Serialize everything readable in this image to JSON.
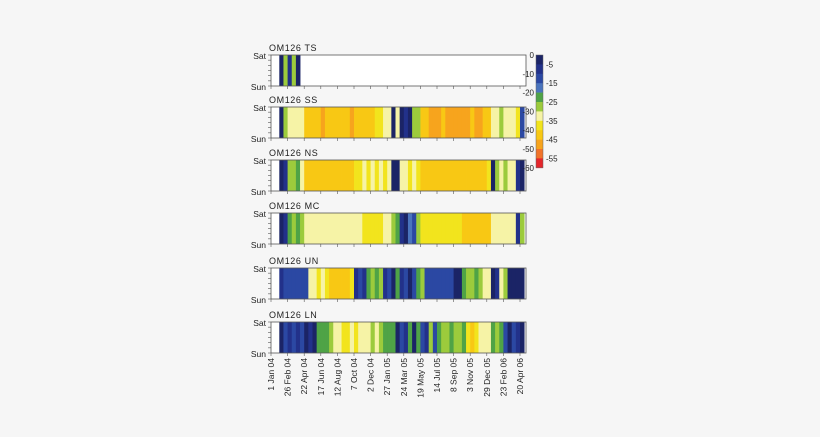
{
  "chart_data": {
    "type": "heatmap",
    "value_scale": {
      "min": -60,
      "max": 0,
      "step": 5,
      "colors": [
        "#1b2466",
        "#22318a",
        "#2b48a3",
        "#4a74bd",
        "#4fa346",
        "#9ccb3c",
        "#f6f3a6",
        "#f2e41d",
        "#f8c814",
        "#f7a41d",
        "#f1732a",
        "#e4262b"
      ],
      "left_ticks": [
        "0",
        "-10",
        "-20",
        "-30",
        "-40",
        "-50",
        "-60"
      ],
      "right_ticks": [
        "-5",
        "-15",
        "-25",
        "-35",
        "-45",
        "-55"
      ]
    },
    "y_labels": {
      "top": "Sat",
      "bottom": "Sun"
    },
    "x_tick_labels": [
      "1 Jan 04",
      "26 Feb 04",
      "22 Apr 04",
      "17 Jun 04",
      "12 Aug 04",
      "7 Oct 04",
      "2 Dec 04",
      "27 Jan 05",
      "24 Mar 05",
      "19 May 05",
      "14 Jul 05",
      "8 Sep 05",
      "3 Nov 05",
      "29 Dec 05",
      "23 Feb 06",
      "20 Apr 06"
    ],
    "column_interval_weeks": 2,
    "panels": [
      {
        "title": "OM126 TS",
        "values": [
          null,
          null,
          -2,
          -25,
          -5,
          -28,
          -3,
          null,
          null,
          null,
          null,
          null,
          null,
          null,
          null,
          null,
          null,
          null,
          null,
          null,
          null,
          null,
          null,
          null,
          null,
          null,
          null,
          null,
          null,
          null,
          null,
          null,
          null,
          null,
          null,
          null,
          null,
          null,
          null,
          null,
          null,
          null,
          null,
          null,
          null,
          null,
          null,
          null,
          null,
          null,
          null,
          null,
          null,
          null,
          null,
          null,
          null,
          null,
          null,
          null,
          null
        ]
      },
      {
        "title": "OM126 SS",
        "values": [
          null,
          null,
          -3,
          -28,
          -33,
          -32,
          -30,
          -34,
          -42,
          -40,
          -43,
          -40,
          -45,
          -42,
          -40,
          -43,
          -44,
          -40,
          -42,
          -45,
          -41,
          -40,
          -43,
          -42,
          -40,
          -38,
          -36,
          -33,
          -30,
          -3,
          -32,
          -3,
          -8,
          -2,
          -28,
          -25,
          -42,
          -44,
          -45,
          -46,
          -45,
          -44,
          -46,
          -47,
          -45,
          -46,
          -47,
          -45,
          -44,
          -46,
          -45,
          -43,
          -40,
          -33,
          -34,
          -26,
          -33,
          -34,
          -32,
          -35,
          -10
        ]
      },
      {
        "title": "OM126 NS",
        "values": [
          null,
          null,
          -3,
          -5,
          -25,
          -27,
          -23,
          -30,
          -40,
          -42,
          -41,
          -40,
          -43,
          -44,
          -42,
          -40,
          -41,
          -43,
          -42,
          -40,
          -38,
          -36,
          -32,
          -36,
          -30,
          -38,
          -34,
          -36,
          -33,
          -3,
          -4,
          -30,
          -34,
          -35,
          -33,
          -36,
          -40,
          -41,
          -42,
          -40,
          -43,
          -42,
          -44,
          -42,
          -41,
          -40,
          -43,
          -42,
          -40,
          -41,
          -42,
          -40,
          -38,
          -3,
          -28,
          -32,
          -26,
          -34,
          -30,
          -8,
          -3
        ]
      },
      {
        "title": "OM126 MC",
        "values": [
          null,
          null,
          -2,
          -8,
          -24,
          -27,
          -22,
          -26,
          -32,
          -33,
          -31,
          -34,
          -32,
          -33,
          -31,
          -32,
          -34,
          -33,
          -32,
          -31,
          -33,
          -32,
          -37,
          -38,
          -36,
          -37,
          -35,
          -32,
          -30,
          -26,
          -24,
          -5,
          -3,
          -15,
          -10,
          -28,
          -37,
          -38,
          -37,
          -36,
          -38,
          -37,
          -38,
          -36,
          -37,
          -38,
          -42,
          -43,
          -42,
          -44,
          -42,
          -41,
          -40,
          -33,
          -32,
          -34,
          -33,
          -31,
          -33,
          -5,
          -25
        ]
      },
      {
        "title": "OM126 UN",
        "values": [
          null,
          null,
          -6,
          -12,
          -13,
          -10,
          -12,
          -14,
          -13,
          -32,
          -34,
          -36,
          -34,
          -37,
          -41,
          -43,
          -44,
          -42,
          -40,
          -36,
          -5,
          -12,
          -8,
          -24,
          -27,
          -22,
          -25,
          -8,
          -14,
          -4,
          -22,
          -6,
          -12,
          -3,
          -10,
          -24,
          -26,
          -13,
          -14,
          -12,
          -13,
          -14,
          -13,
          -12,
          -4,
          -3,
          -24,
          -27,
          -26,
          -22,
          -27,
          -32,
          -34,
          -3,
          -5,
          -32,
          -27,
          -2,
          -2,
          -2,
          -2
        ]
      },
      {
        "title": "OM126 LN",
        "values": [
          null,
          null,
          -3,
          -12,
          -8,
          -13,
          -6,
          -14,
          -3,
          -5,
          -4,
          -23,
          -24,
          -22,
          -25,
          -33,
          -34,
          -36,
          -35,
          -33,
          -37,
          -34,
          -32,
          -30,
          -27,
          -33,
          -26,
          -22,
          -24,
          -23,
          -4,
          -12,
          -6,
          -22,
          -3,
          -24,
          -10,
          -5,
          -25,
          -13,
          -24,
          -26,
          -25,
          -23,
          -26,
          -25,
          -24,
          -38,
          -42,
          -37,
          -33,
          -34,
          -32,
          -24,
          -26,
          -23,
          -12,
          -4,
          -14,
          -5,
          -3
        ]
      }
    ]
  }
}
